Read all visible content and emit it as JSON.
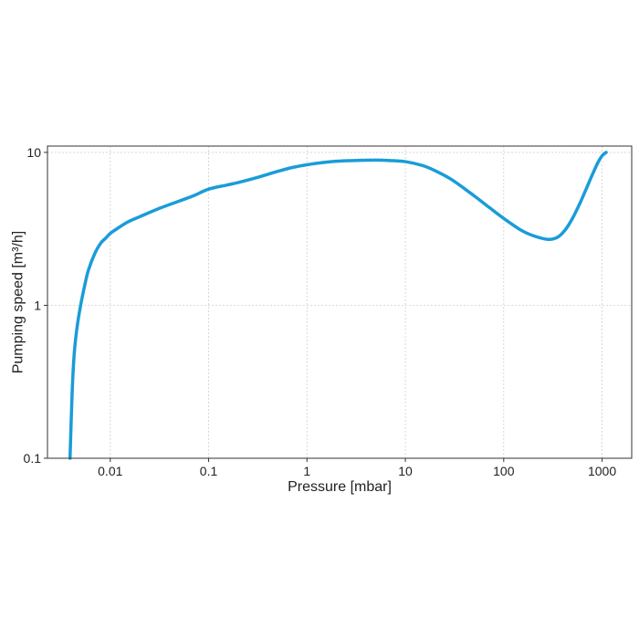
{
  "chart_data": {
    "type": "line",
    "title": "",
    "xlabel": "Pressure [mbar]",
    "ylabel": "Pumping speed [m³/h]",
    "x_scale": "log",
    "y_scale": "log",
    "xlim": [
      0.0023,
      2000
    ],
    "ylim": [
      0.1,
      11
    ],
    "grid": true,
    "x_ticks": [
      {
        "value": 0.01,
        "label": "0.01"
      },
      {
        "value": 0.1,
        "label": "0.1"
      },
      {
        "value": 1,
        "label": "1"
      },
      {
        "value": 10,
        "label": "10"
      },
      {
        "value": 100,
        "label": "100"
      },
      {
        "value": 1000,
        "label": "1000"
      }
    ],
    "y_ticks": [
      {
        "value": 0.1,
        "label": "0.1"
      },
      {
        "value": 1,
        "label": "1"
      },
      {
        "value": 10,
        "label": "10"
      }
    ],
    "colors": {
      "line": "#1a9cd8"
    },
    "series": [
      {
        "x": [
          0.0039,
          0.0041,
          0.0043,
          0.0046,
          0.005,
          0.0055,
          0.006,
          0.007,
          0.008,
          0.009,
          0.01,
          0.012,
          0.015,
          0.02,
          0.03,
          0.05,
          0.07,
          0.1,
          0.15,
          0.2,
          0.3,
          0.5,
          0.7,
          1,
          1.5,
          2,
          3,
          5,
          7,
          10,
          15,
          20,
          30,
          50,
          70,
          100,
          150,
          200,
          280,
          350,
          420,
          500,
          600,
          700,
          800,
          900,
          1000,
          1100
        ],
        "y": [
          0.1,
          0.27,
          0.48,
          0.72,
          1.0,
          1.35,
          1.7,
          2.2,
          2.55,
          2.75,
          2.95,
          3.2,
          3.5,
          3.8,
          4.25,
          4.8,
          5.2,
          5.75,
          6.1,
          6.35,
          6.8,
          7.5,
          7.95,
          8.3,
          8.6,
          8.75,
          8.85,
          8.9,
          8.85,
          8.7,
          8.2,
          7.6,
          6.6,
          5.2,
          4.4,
          3.7,
          3.1,
          2.85,
          2.7,
          2.78,
          3.1,
          3.7,
          4.7,
          5.9,
          7.2,
          8.5,
          9.5,
          10.0
        ]
      }
    ]
  }
}
